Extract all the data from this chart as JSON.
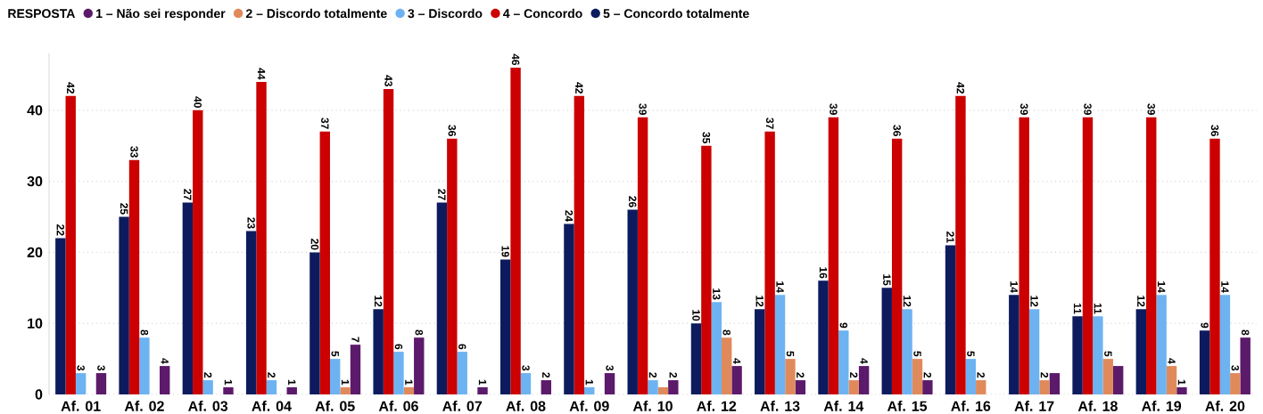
{
  "chart_data": {
    "type": "bar",
    "legend_title": "RESPOSTA",
    "legend": "top left",
    "grid": "y",
    "categories": [
      "Af. 01",
      "Af. 02",
      "Af. 03",
      "Af. 04",
      "Af. 05",
      "Af. 06",
      "Af. 07",
      "Af. 08",
      "Af. 09",
      "Af. 10",
      "Af. 12",
      "Af. 13",
      "Af. 14",
      "Af. 15",
      "Af. 16",
      "Af. 17",
      "Af. 18",
      "Af. 19",
      "Af. 20"
    ],
    "ylim": [
      0,
      48
    ],
    "yticks": [
      0,
      10,
      20,
      30,
      40
    ],
    "series": [
      {
        "name": "1 – Não sei responder",
        "color": "#5c1a6b",
        "values": [
          3,
          4,
          1,
          1,
          7,
          8,
          1,
          2,
          3,
          2,
          4,
          2,
          4,
          2,
          0,
          3,
          4,
          1,
          8
        ],
        "value_labels": [
          "3",
          "4",
          "1",
          "1",
          "7",
          "8",
          "1",
          "2",
          "3",
          "2",
          "4",
          "2",
          "4",
          "2",
          null,
          null,
          null,
          "1",
          "8"
        ]
      },
      {
        "name": "2 – Discordo totalmente",
        "color": "#e08a5c",
        "values": [
          0,
          0,
          0,
          0,
          1,
          1,
          0,
          0,
          0,
          1,
          8,
          5,
          2,
          5,
          2,
          2,
          5,
          4,
          3
        ],
        "value_labels": [
          null,
          null,
          null,
          null,
          "1",
          "1",
          null,
          null,
          null,
          null,
          "8",
          "5",
          "2",
          "5",
          "2",
          "2",
          "5",
          "4",
          "3"
        ]
      },
      {
        "name": "3 – Discordo",
        "color": "#6db3f2",
        "values": [
          3,
          8,
          2,
          2,
          5,
          6,
          6,
          3,
          1,
          2,
          13,
          14,
          9,
          12,
          5,
          12,
          11,
          14,
          14
        ],
        "value_labels": [
          "3",
          "8",
          "2",
          "2",
          "5",
          "6",
          "6",
          "3",
          "1",
          "2",
          "13",
          "14",
          "9",
          "12",
          "5",
          "12",
          "11",
          "14",
          "14"
        ]
      },
      {
        "name": "4 – Concordo",
        "color": "#cc0000",
        "values": [
          42,
          33,
          40,
          44,
          37,
          43,
          36,
          46,
          42,
          39,
          35,
          37,
          39,
          36,
          42,
          39,
          39,
          39,
          36
        ],
        "value_labels": [
          "42",
          "33",
          "40",
          "44",
          "37",
          "43",
          "36",
          "46",
          "42",
          "39",
          "35",
          "37",
          "39",
          "36",
          "42",
          "39",
          "39",
          "39",
          "36"
        ]
      },
      {
        "name": "5 – Concordo totalmente",
        "color": "#0d1b5e",
        "values": [
          22,
          25,
          27,
          23,
          20,
          12,
          27,
          19,
          24,
          26,
          10,
          12,
          16,
          15,
          21,
          14,
          11,
          12,
          9
        ],
        "value_labels": [
          "22",
          "25",
          "27",
          "23",
          "20",
          "12",
          "27",
          "19",
          "24",
          "26",
          "10",
          "12",
          "16",
          "15",
          "21",
          "14",
          "11",
          "12",
          "9"
        ]
      }
    ]
  }
}
